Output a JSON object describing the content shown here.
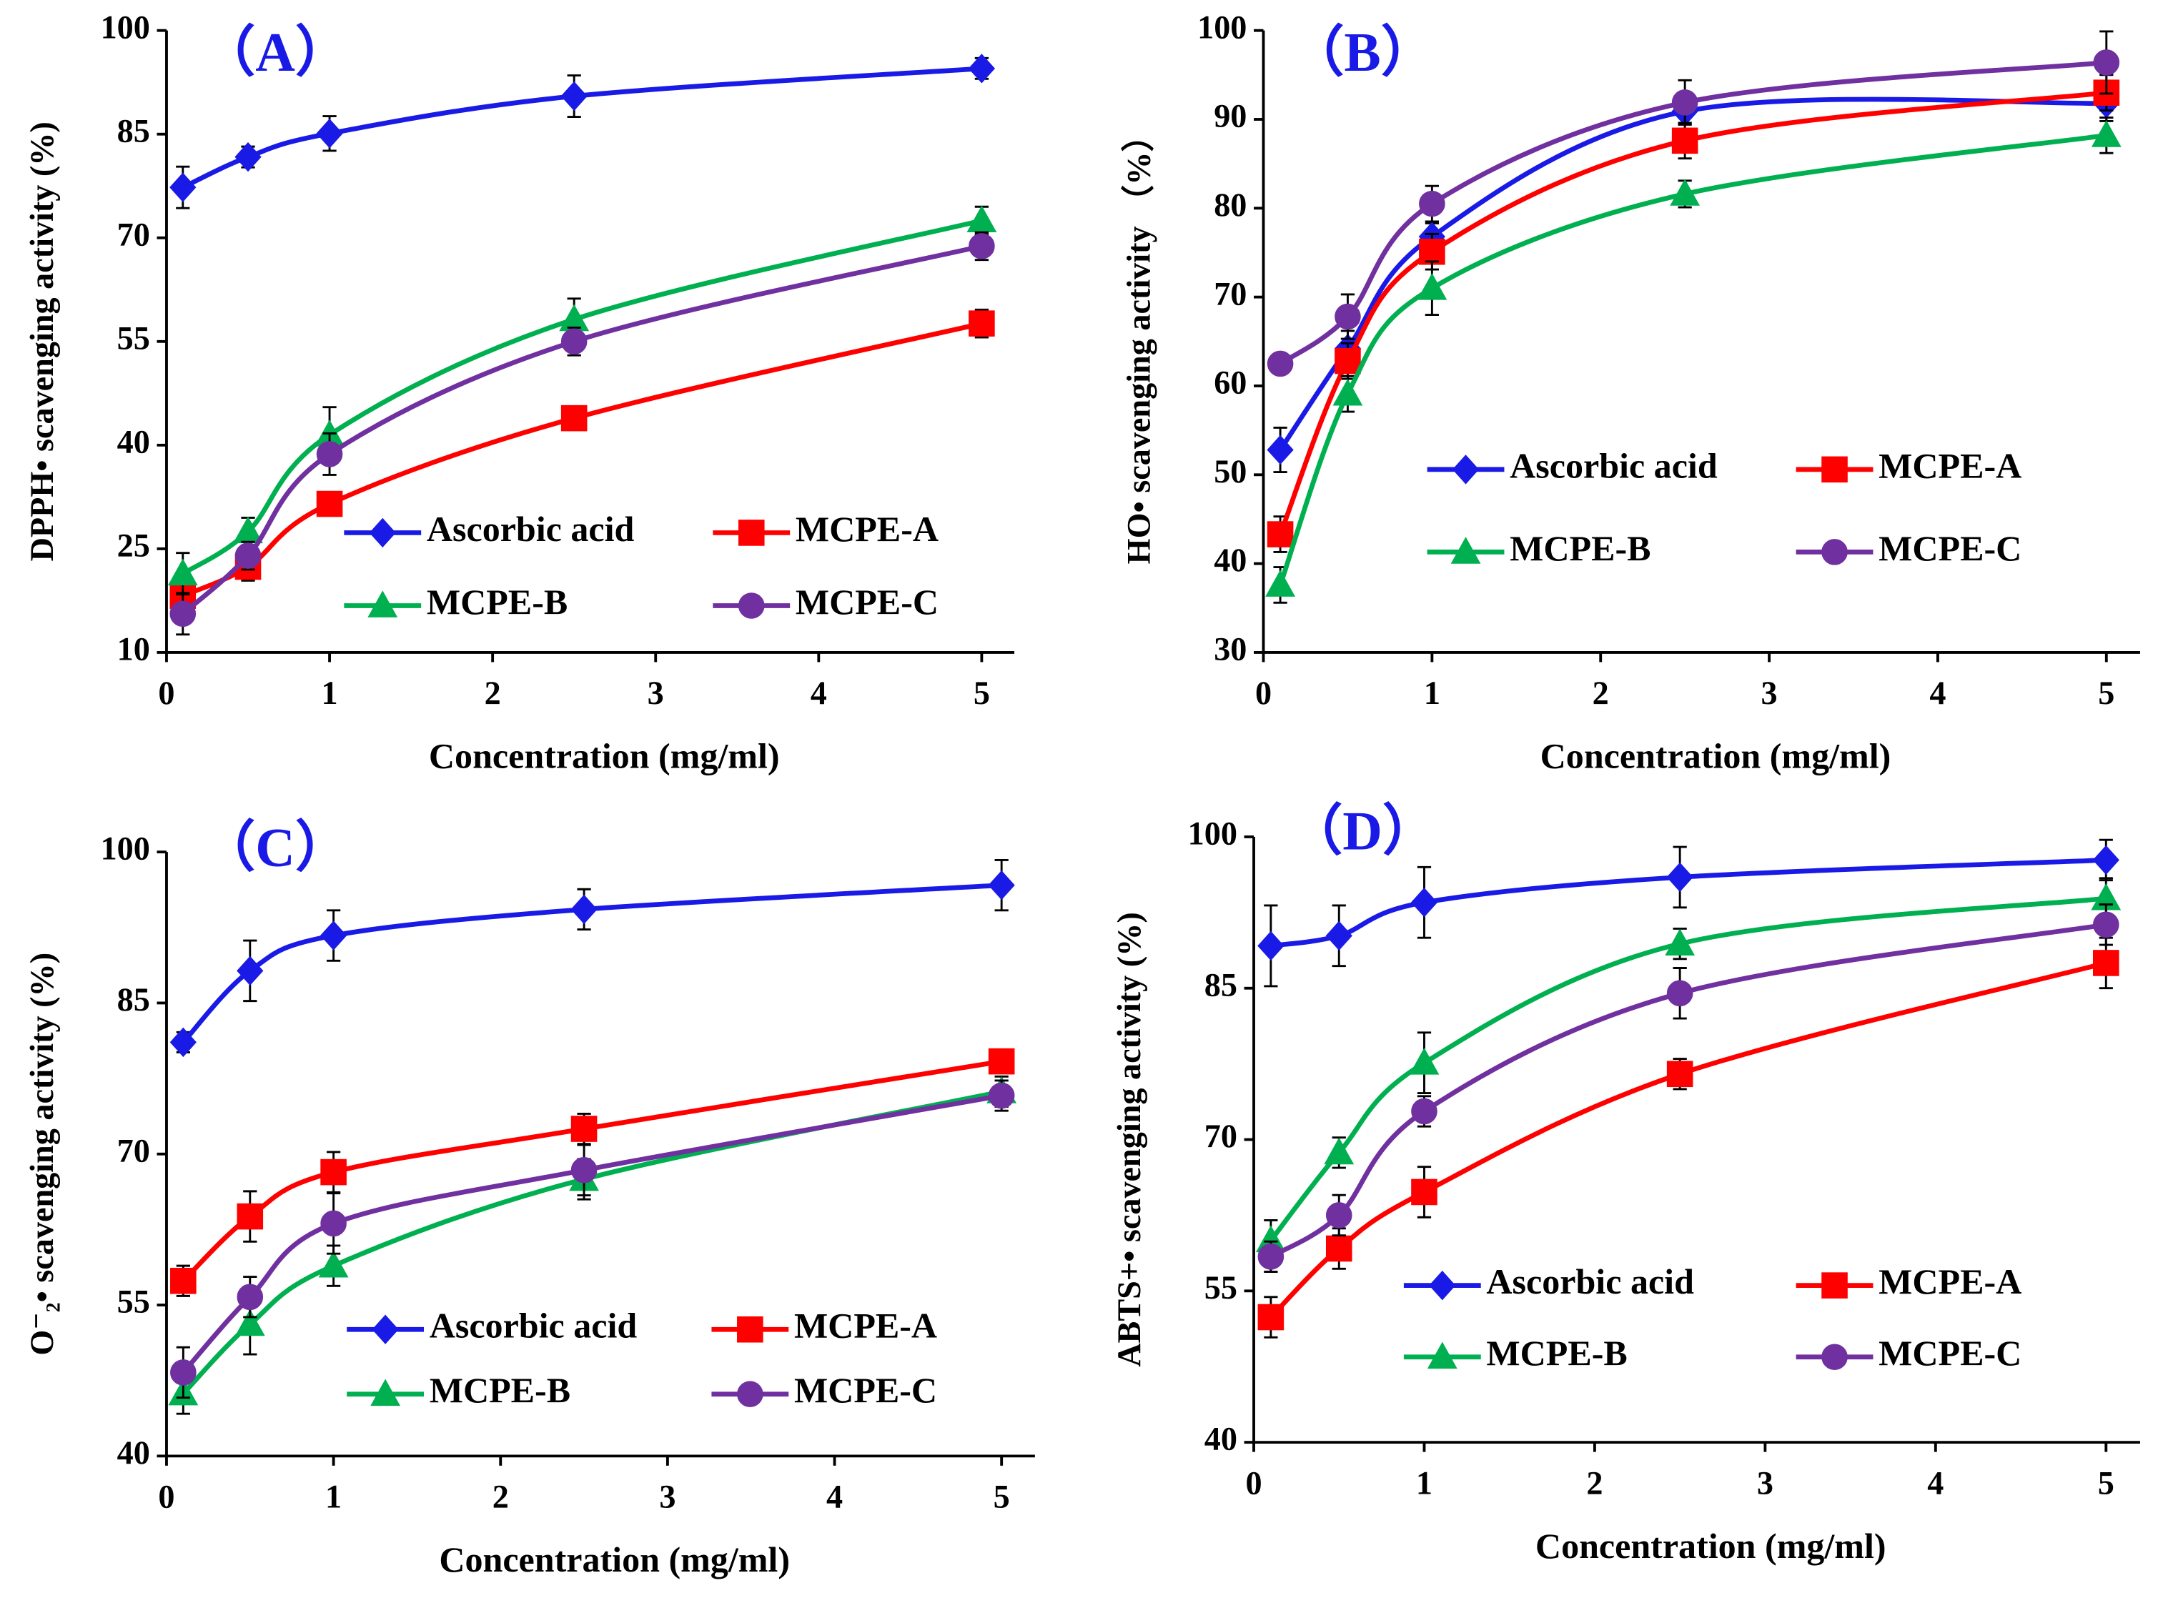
{
  "chart_data": [
    {
      "type": "line",
      "title": "（A）",
      "xlabel": "Concentration (mg/ml)",
      "ylabel": "DPPH• scavenging activity (%)",
      "x": [
        0.1,
        0.5,
        1,
        2.5,
        5
      ],
      "xlim": [
        0,
        5.2
      ],
      "xticks": [
        0,
        1,
        2,
        3,
        4,
        5
      ],
      "ylim": [
        10,
        100
      ],
      "yticks": [
        10,
        25,
        40,
        55,
        70,
        85,
        100
      ],
      "series": [
        {
          "name": "Ascorbic acid",
          "color": "#1a1ae6",
          "marker": "diamond",
          "values": [
            77.3,
            81.7,
            85.1,
            90.5,
            94.5
          ],
          "errors": [
            3,
            1.5,
            2.5,
            3,
            1.5
          ]
        },
        {
          "name": "MCPE-A",
          "color": "#ff0000",
          "marker": "square",
          "values": [
            18.2,
            22.4,
            31.5,
            43.9,
            57.6
          ],
          "errors": [
            2,
            2,
            1,
            1,
            2
          ]
        },
        {
          "name": "MCPE-B",
          "color": "#00b050",
          "marker": "triangle",
          "values": [
            21.4,
            27.5,
            41.5,
            58.2,
            72.5
          ],
          "errors": [
            3,
            2,
            4,
            3,
            2
          ]
        },
        {
          "name": "MCPE-C",
          "color": "#7030a0",
          "marker": "circle",
          "values": [
            15.6,
            24,
            38.7,
            55,
            68.8
          ],
          "errors": [
            3,
            2,
            3,
            2,
            2
          ]
        }
      ]
    },
    {
      "type": "line",
      "title": "（B）",
      "xlabel": "Concentration (mg/ml)",
      "ylabel": "HO• scavenging activity （%）",
      "x": [
        0.1,
        0.5,
        1,
        2.5,
        5
      ],
      "xlim": [
        0,
        5.2
      ],
      "xticks": [
        0,
        1,
        2,
        3,
        4,
        5
      ],
      "ylim": [
        30,
        100
      ],
      "yticks": [
        30,
        40,
        50,
        60,
        70,
        80,
        90,
        100
      ],
      "series": [
        {
          "name": "Ascorbic acid",
          "color": "#1a1ae6",
          "marker": "diamond",
          "values": [
            52.8,
            64.2,
            76.8,
            90.9,
            91.8
          ],
          "errors": [
            2.5,
            2,
            1.5,
            2,
            2
          ]
        },
        {
          "name": "MCPE-A",
          "color": "#ff0000",
          "marker": "square",
          "values": [
            43.3,
            62.8,
            75.1,
            87.6,
            93
          ],
          "errors": [
            2,
            2,
            2,
            2,
            2
          ]
        },
        {
          "name": "MCPE-B",
          "color": "#00b050",
          "marker": "triangle",
          "values": [
            37.6,
            59.1,
            71,
            81.6,
            88.2
          ],
          "errors": [
            2,
            2,
            3,
            1.5,
            2
          ]
        },
        {
          "name": "MCPE-C",
          "color": "#7030a0",
          "marker": "circle",
          "values": [
            62.5,
            67.8,
            80.5,
            91.9,
            96.4
          ],
          "errors": [
            1,
            2.5,
            2,
            2.5,
            3.5
          ]
        }
      ]
    },
    {
      "type": "line",
      "title": "（C）",
      "xlabel": "Concentration (mg/ml)",
      "ylabel": "O⁻₂• scavenging activity (%)",
      "x": [
        0.1,
        0.5,
        1,
        2.5,
        5
      ],
      "xlim": [
        0,
        5.2
      ],
      "xticks": [
        0,
        1,
        2,
        3,
        4,
        5
      ],
      "ylim": [
        40,
        100
      ],
      "yticks": [
        40,
        55,
        70,
        85,
        100
      ],
      "series": [
        {
          "name": "Ascorbic acid",
          "color": "#1a1ae6",
          "marker": "diamond",
          "values": [
            81.1,
            88.2,
            91.7,
            94.3,
            96.7
          ],
          "errors": [
            1,
            3,
            2.5,
            2,
            2.5
          ]
        },
        {
          "name": "MCPE-A",
          "color": "#ff0000",
          "marker": "square",
          "values": [
            57.4,
            63.8,
            68.2,
            72.5,
            79.2
          ],
          "errors": [
            1.5,
            2.5,
            2,
            1.5,
            1
          ]
        },
        {
          "name": "MCPE-B",
          "color": "#00b050",
          "marker": "triangle",
          "values": [
            46.2,
            53.1,
            58.9,
            67.5,
            76.2
          ],
          "errors": [
            2,
            3,
            2,
            2,
            1.5
          ]
        },
        {
          "name": "MCPE-C",
          "color": "#7030a0",
          "marker": "circle",
          "values": [
            48.3,
            55.8,
            63.1,
            68.4,
            75.8
          ],
          "errors": [
            2.5,
            2,
            3,
            2.5,
            1.5
          ]
        }
      ]
    },
    {
      "type": "line",
      "title": "（D）",
      "xlabel": "Concentration (mg/ml)",
      "ylabel": "ABTS+• scavenging activity (%)",
      "x": [
        0.1,
        0.5,
        1,
        2.5,
        5
      ],
      "xlim": [
        0,
        5.2
      ],
      "xticks": [
        0,
        1,
        2,
        3,
        4,
        5
      ],
      "ylim": [
        40,
        100
      ],
      "yticks": [
        40,
        55,
        70,
        85,
        100
      ],
      "series": [
        {
          "name": "Ascorbic acid",
          "color": "#1a1ae6",
          "marker": "diamond",
          "values": [
            89.2,
            90.2,
            93.5,
            96,
            97.7
          ],
          "errors": [
            4,
            3,
            3.5,
            3,
            2
          ]
        },
        {
          "name": "MCPE-A",
          "color": "#ff0000",
          "marker": "square",
          "values": [
            52.4,
            59.2,
            64.8,
            76.5,
            87.5
          ],
          "errors": [
            2,
            2,
            2.5,
            1.5,
            2.5
          ]
        },
        {
          "name": "MCPE-B",
          "color": "#00b050",
          "marker": "triangle",
          "values": [
            60,
            68.7,
            77.6,
            89.4,
            93.9
          ],
          "errors": [
            2,
            1.5,
            3,
            1.5,
            2
          ]
        },
        {
          "name": "MCPE-C",
          "color": "#7030a0",
          "marker": "circle",
          "values": [
            58.4,
            62.5,
            72.8,
            84.5,
            91.3
          ],
          "errors": [
            1.5,
            2,
            1.5,
            2.5,
            2
          ]
        }
      ]
    }
  ]
}
